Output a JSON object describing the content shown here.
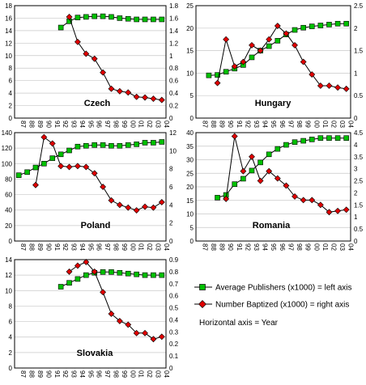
{
  "colors": {
    "publishers": "#00c000",
    "baptized": "#e00000",
    "line": "#000000",
    "grid": "#c8c8c8"
  },
  "legend": {
    "publishers_label": "Average Publishers (x1000) = left axis",
    "baptized_label": "Number Baptized (x1000) = right axis",
    "axis_note": "Horizontal axis = Year"
  },
  "chart_data": [
    {
      "type": "line",
      "title": "Czech",
      "categories": [
        "87",
        "88",
        "89",
        "90",
        "91",
        "92",
        "93",
        "94",
        "95",
        "96",
        "97",
        "98",
        "99",
        "00",
        "01",
        "02",
        "03",
        "04"
      ],
      "left_ticks": [
        "0",
        "2",
        "4",
        "6",
        "8",
        "10",
        "12",
        "14",
        "16",
        "18"
      ],
      "right_ticks": [
        "0",
        "0.2",
        "0.4",
        "0.6",
        "0.8",
        "1",
        "1.2",
        "1.4",
        "1.6",
        "1.8"
      ],
      "ylim_left": [
        0,
        18
      ],
      "ylim_right": [
        0,
        1.8
      ],
      "series": [
        {
          "name": "Average Publishers (x1000)",
          "axis": "left",
          "values": [
            null,
            null,
            null,
            null,
            null,
            14.5,
            15.5,
            16.1,
            16.2,
            16.3,
            16.3,
            16.2,
            16.0,
            15.9,
            15.8,
            15.8,
            15.8,
            15.8
          ]
        },
        {
          "name": "Number Baptized (x1000)",
          "axis": "right",
          "values": [
            null,
            null,
            null,
            null,
            null,
            null,
            1.62,
            1.22,
            1.03,
            0.95,
            0.73,
            0.47,
            0.43,
            0.41,
            0.34,
            0.33,
            0.31,
            0.29
          ]
        }
      ]
    },
    {
      "type": "line",
      "title": "Hungary",
      "categories": [
        "87",
        "88",
        "89",
        "90",
        "91",
        "92",
        "93",
        "94",
        "95",
        "96",
        "97",
        "98",
        "99",
        "00",
        "01",
        "02",
        "03",
        "04"
      ],
      "left_ticks": [
        "0",
        "5",
        "10",
        "15",
        "20",
        "25"
      ],
      "right_ticks": [
        "0",
        "0.5",
        "1",
        "1.5",
        "2",
        "2.5"
      ],
      "ylim_left": [
        0,
        25
      ],
      "ylim_right": [
        0,
        2.5
      ],
      "series": [
        {
          "name": "Average Publishers (x1000)",
          "axis": "left",
          "values": [
            null,
            9.5,
            9.6,
            10.3,
            11.0,
            11.8,
            13.5,
            15.0,
            16.0,
            17.2,
            18.6,
            19.6,
            20.1,
            20.4,
            20.6,
            20.8,
            21.0,
            21.0
          ]
        },
        {
          "name": "Number Baptized (x1000)",
          "axis": "right",
          "values": [
            null,
            null,
            0.78,
            1.75,
            1.15,
            1.25,
            1.62,
            1.5,
            1.75,
            2.05,
            1.88,
            1.62,
            1.25,
            0.97,
            0.72,
            0.72,
            0.68,
            0.65
          ]
        }
      ]
    },
    {
      "type": "line",
      "title": "Poland",
      "categories": [
        "87",
        "88",
        "89",
        "90",
        "91",
        "92",
        "93",
        "94",
        "95",
        "96",
        "97",
        "98",
        "99",
        "00",
        "01",
        "02",
        "03",
        "04"
      ],
      "left_ticks": [
        "0",
        "20",
        "40",
        "60",
        "80",
        "100",
        "120",
        "140"
      ],
      "right_ticks": [
        "0",
        "2",
        "4",
        "6",
        "8",
        "10",
        "12"
      ],
      "ylim_left": [
        0,
        140
      ],
      "ylim_right": [
        0,
        12
      ],
      "series": [
        {
          "name": "Average Publishers (x1000)",
          "axis": "left",
          "values": [
            85,
            89,
            95,
            100,
            107,
            112,
            117,
            122,
            123,
            124,
            124,
            123,
            123,
            124,
            125,
            127,
            127,
            128
          ]
        },
        {
          "name": "Number Baptized (x1000)",
          "axis": "right",
          "values": [
            null,
            null,
            6.2,
            11.5,
            10.8,
            8.3,
            8.2,
            8.3,
            8.2,
            7.5,
            6.0,
            4.5,
            4.0,
            3.7,
            3.4,
            3.8,
            3.7,
            4.3
          ]
        }
      ]
    },
    {
      "type": "line",
      "title": "Romania",
      "categories": [
        "87",
        "88",
        "89",
        "90",
        "91",
        "92",
        "93",
        "94",
        "95",
        "96",
        "97",
        "98",
        "99",
        "00",
        "01",
        "02",
        "03",
        "04"
      ],
      "left_ticks": [
        "0",
        "5",
        "10",
        "15",
        "20",
        "25",
        "30",
        "35",
        "40"
      ],
      "right_ticks": [
        "0",
        "0.5",
        "1",
        "1.5",
        "2",
        "2.5",
        "3",
        "3.5",
        "4",
        "4.5"
      ],
      "ylim_left": [
        0,
        40
      ],
      "ylim_right": [
        0,
        4.5
      ],
      "series": [
        {
          "name": "Average Publishers (x1000)",
          "axis": "left",
          "values": [
            null,
            null,
            16,
            17,
            21,
            23,
            26,
            29,
            32,
            34,
            35.5,
            36.5,
            37,
            37.5,
            38,
            38,
            38,
            38
          ]
        },
        {
          "name": "Number Baptized (x1000)",
          "axis": "right",
          "values": [
            null,
            null,
            null,
            1.75,
            4.35,
            2.9,
            3.5,
            2.5,
            2.9,
            2.6,
            2.3,
            1.85,
            1.7,
            1.7,
            1.5,
            1.2,
            1.25,
            1.3
          ]
        }
      ]
    },
    {
      "type": "line",
      "title": "Slovakia",
      "categories": [
        "87",
        "88",
        "89",
        "90",
        "91",
        "92",
        "93",
        "94",
        "95",
        "96",
        "97",
        "98",
        "99",
        "00",
        "01",
        "02",
        "03",
        "04"
      ],
      "left_ticks": [
        "0",
        "2",
        "4",
        "6",
        "8",
        "10",
        "12",
        "14"
      ],
      "right_ticks": [
        "0",
        "0.1",
        "0.2",
        "0.3",
        "0.4",
        "0.5",
        "0.6",
        "0.7",
        "0.8",
        "0.9"
      ],
      "ylim_left": [
        0,
        14
      ],
      "ylim_right": [
        0,
        0.9
      ],
      "series": [
        {
          "name": "Average Publishers (x1000)",
          "axis": "left",
          "values": [
            null,
            null,
            null,
            null,
            null,
            10.5,
            11.0,
            11.5,
            12.0,
            12.3,
            12.4,
            12.4,
            12.3,
            12.2,
            12.1,
            12.0,
            12.0,
            12.0
          ]
        },
        {
          "name": "Number Baptized (x1000)",
          "axis": "right",
          "values": [
            null,
            null,
            null,
            null,
            null,
            null,
            0.8,
            0.85,
            0.88,
            0.8,
            0.63,
            0.45,
            0.39,
            0.36,
            0.29,
            0.29,
            0.24,
            0.26
          ]
        }
      ]
    }
  ]
}
